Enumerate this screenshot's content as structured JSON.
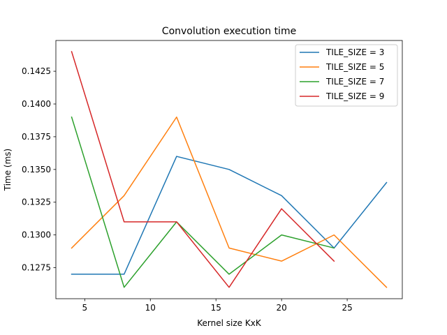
{
  "chart_data": {
    "type": "line",
    "title": "Convolution execution time",
    "xlabel": "Kernel size KxK",
    "ylabel": "Time (ms)",
    "xlim": [
      2.8,
      29.2
    ],
    "ylim": [
      0.12513,
      0.14485
    ],
    "xticks": [
      5,
      10,
      15,
      20,
      25
    ],
    "yticks": [
      0.1275,
      0.13,
      0.1325,
      0.135,
      0.1375,
      0.14,
      0.1425
    ],
    "xtick_labels": [
      "5",
      "10",
      "15",
      "20",
      "25"
    ],
    "ytick_labels": [
      "0.1275",
      "0.1300",
      "0.1325",
      "0.1350",
      "0.1375",
      "0.1400",
      "0.1425"
    ],
    "grid": false,
    "legend_position": "top-right",
    "series": [
      {
        "name": "TILE_SIZE = 3",
        "color": "#1f77b4",
        "x": [
          4,
          8,
          12,
          16,
          20,
          24,
          28
        ],
        "values": [
          0.127,
          0.127,
          0.136,
          0.135,
          0.133,
          0.129,
          0.134
        ]
      },
      {
        "name": "TILE_SIZE = 5",
        "color": "#ff7f0e",
        "x": [
          4,
          8,
          12,
          16,
          20,
          24,
          28
        ],
        "values": [
          0.129,
          0.133,
          0.139,
          0.129,
          0.128,
          0.13,
          0.126
        ]
      },
      {
        "name": "TILE_SIZE = 7",
        "color": "#2ca02c",
        "x": [
          4,
          8,
          12,
          16,
          20,
          24
        ],
        "values": [
          0.139,
          0.126,
          0.131,
          0.127,
          0.13,
          0.129
        ]
      },
      {
        "name": "TILE_SIZE = 9",
        "color": "#d62728",
        "x": [
          4,
          8,
          12,
          16,
          20,
          24
        ],
        "values": [
          0.144,
          0.131,
          0.131,
          0.126,
          0.132,
          0.128
        ]
      }
    ]
  }
}
